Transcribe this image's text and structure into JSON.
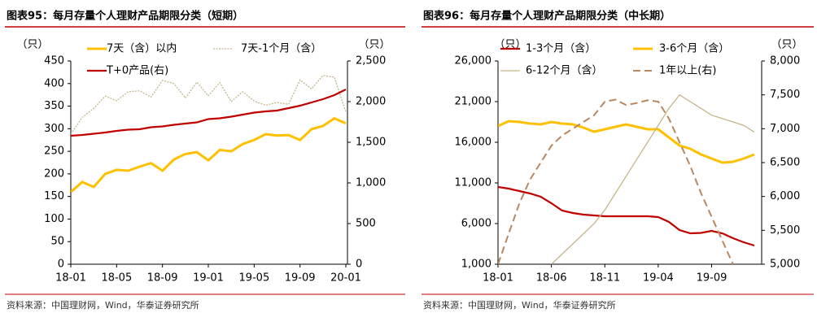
{
  "chart_data": [
    {
      "type": "line",
      "title": "图表95：每月存量个人理财产品期限分类（短期）",
      "source": "资料来源：中国理财网，Wind，华泰证券研究所",
      "y_unit": "（只）",
      "y2_unit": "（只）",
      "categories": [
        "18-01",
        null,
        null,
        null,
        "18-05",
        null,
        null,
        null,
        "18-09",
        null,
        null,
        null,
        "19-01",
        null,
        null,
        null,
        "19-05",
        null,
        null,
        null,
        "19-09",
        null,
        null,
        null,
        "20-01"
      ],
      "ylim": [
        0,
        450
      ],
      "yticks": [
        0,
        50,
        100,
        150,
        200,
        250,
        300,
        350,
        400,
        450
      ],
      "y2lim": [
        0,
        2500
      ],
      "y2ticks": [
        0,
        500,
        {
          "value": 1000,
          "label": "1,000"
        },
        {
          "value": 1500,
          "label": "1,500"
        },
        {
          "value": 2000,
          "label": "2,000"
        },
        {
          "value": 2500,
          "label": "2,500"
        }
      ],
      "series": [
        {
          "name": "7天（含）以内",
          "color": "#ffc000",
          "width": 3,
          "dash": "solid",
          "axis": "y",
          "values": [
            160,
            182,
            171,
            200,
            209,
            207,
            216,
            224,
            207,
            232,
            244,
            248,
            230,
            253,
            250,
            266,
            275,
            288,
            285,
            286,
            275,
            299,
            306,
            323,
            312
          ]
        },
        {
          "name": "7天-1个月（含）",
          "color": "#c4b58a",
          "width": 1.3,
          "dash": "dotted",
          "axis": "y",
          "values": [
            288,
            325,
            345,
            372,
            362,
            382,
            384,
            370,
            407,
            400,
            368,
            403,
            373,
            402,
            360,
            382,
            361,
            352,
            358,
            354,
            408,
            388,
            418,
            414,
            337
          ]
        },
        {
          "name": "T+0产品(右)",
          "color": "#c00000",
          "width": 2.2,
          "dash": "solid",
          "axis": "y2",
          "values": [
            1580,
            1590,
            1605,
            1620,
            1640,
            1655,
            1660,
            1685,
            1695,
            1715,
            1730,
            1745,
            1785,
            1795,
            1815,
            1840,
            1865,
            1880,
            1890,
            1920,
            1950,
            1990,
            2030,
            2080,
            2150
          ]
        }
      ]
    },
    {
      "type": "line",
      "title": "图表96：每月存量个人理财产品期限分类（中长期）",
      "source": "资料来源：中国理财网，Wind，华泰证券研究所",
      "y_unit": "（只）",
      "y2_unit": "（只）",
      "categories": [
        "18-01",
        null,
        null,
        null,
        null,
        "18-06",
        null,
        null,
        null,
        null,
        "18-11",
        null,
        null,
        null,
        null,
        "19-04",
        null,
        null,
        null,
        null,
        "19-09",
        null,
        null,
        null,
        null
      ],
      "ylim": [
        1000,
        26000
      ],
      "yticks": [
        {
          "value": 1000,
          "label": "1,000"
        },
        {
          "value": 6000,
          "label": "6,000"
        },
        {
          "value": 11000,
          "label": "11,000"
        },
        {
          "value": 16000,
          "label": "16,000"
        },
        {
          "value": 21000,
          "label": "21,000"
        },
        {
          "value": 26000,
          "label": "26,000"
        }
      ],
      "y2lim": [
        5000,
        8000
      ],
      "y2ticks": [
        {
          "value": 5000,
          "label": "5,000"
        },
        {
          "value": 5500,
          "label": "5,500"
        },
        {
          "value": 6000,
          "label": "6,000"
        },
        {
          "value": 6500,
          "label": "6,500"
        },
        {
          "value": 7000,
          "label": "7,000"
        },
        {
          "value": 7500,
          "label": "7,500"
        },
        {
          "value": 8000,
          "label": "8,000"
        }
      ],
      "series": [
        {
          "name": "1-3个月（含）",
          "color": "#c00000",
          "width": 2.2,
          "dash": "solid",
          "axis": "y",
          "values": [
            10500,
            10300,
            10000,
            9700,
            9300,
            8500,
            7600,
            7300,
            7100,
            7000,
            6900,
            6900,
            6900,
            6900,
            6900,
            6800,
            6200,
            5200,
            4800,
            4850,
            5100,
            4800,
            4200,
            3700,
            3300
          ]
        },
        {
          "name": "3-6个月（含）",
          "color": "#ffc000",
          "width": 3,
          "dash": "solid",
          "axis": "y",
          "values": [
            18000,
            18600,
            18500,
            18300,
            18200,
            18500,
            18300,
            18200,
            17800,
            17300,
            17600,
            17900,
            18200,
            17900,
            17600,
            17600,
            16600,
            15600,
            15200,
            14500,
            14000,
            13500,
            13600,
            14000,
            14500
          ]
        },
        {
          "name": "6-12个月（含）",
          "color": "#c4b58a",
          "width": 1.3,
          "dash": "solid",
          "axis": "y2",
          "values": [
            null,
            null,
            null,
            null,
            null,
            5000,
            5150,
            5300,
            5450,
            5600,
            5800,
            6050,
            6300,
            6550,
            6800,
            7050,
            7300,
            7500,
            7400,
            7300,
            7200,
            7150,
            7100,
            7050,
            6950
          ]
        },
        {
          "name": "1年以上(右)",
          "color": "#b9875f",
          "width": 2,
          "dash": "dashed",
          "axis": "y2",
          "values": [
            5000,
            5450,
            5900,
            6250,
            6500,
            6750,
            6900,
            7000,
            7100,
            7200,
            7400,
            7430,
            7350,
            7380,
            7420,
            7400,
            7150,
            6800,
            6450,
            6050,
            5700,
            5350,
            5000,
            null,
            null
          ]
        }
      ]
    }
  ]
}
